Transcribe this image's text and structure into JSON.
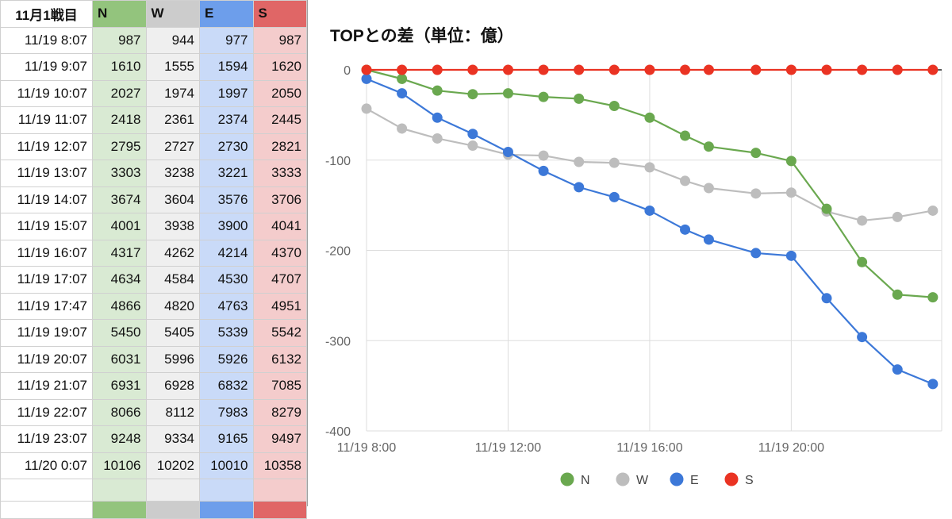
{
  "sheet": {
    "header": {
      "label": "11月1戦目",
      "cols": [
        "N",
        "W",
        "E",
        "S"
      ]
    },
    "rows": [
      {
        "time": "11/19 8:07",
        "n": "987",
        "w": "944",
        "e": "977",
        "s": "987"
      },
      {
        "time": "11/19 9:07",
        "n": "1610",
        "w": "1555",
        "e": "1594",
        "s": "1620"
      },
      {
        "time": "11/19 10:07",
        "n": "2027",
        "w": "1974",
        "e": "1997",
        "s": "2050"
      },
      {
        "time": "11/19 11:07",
        "n": "2418",
        "w": "2361",
        "e": "2374",
        "s": "2445"
      },
      {
        "time": "11/19 12:07",
        "n": "2795",
        "w": "2727",
        "e": "2730",
        "s": "2821"
      },
      {
        "time": "11/19 13:07",
        "n": "3303",
        "w": "3238",
        "e": "3221",
        "s": "3333"
      },
      {
        "time": "11/19 14:07",
        "n": "3674",
        "w": "3604",
        "e": "3576",
        "s": "3706"
      },
      {
        "time": "11/19 15:07",
        "n": "4001",
        "w": "3938",
        "e": "3900",
        "s": "4041"
      },
      {
        "time": "11/19 16:07",
        "n": "4317",
        "w": "4262",
        "e": "4214",
        "s": "4370"
      },
      {
        "time": "11/19 17:07",
        "n": "4634",
        "w": "4584",
        "e": "4530",
        "s": "4707"
      },
      {
        "time": "11/19 17:47",
        "n": "4866",
        "w": "4820",
        "e": "4763",
        "s": "4951"
      },
      {
        "time": "11/19 19:07",
        "n": "5450",
        "w": "5405",
        "e": "5339",
        "s": "5542"
      },
      {
        "time": "11/19 20:07",
        "n": "6031",
        "w": "5996",
        "e": "5926",
        "s": "6132"
      },
      {
        "time": "11/19 21:07",
        "n": "6931",
        "w": "6928",
        "e": "6832",
        "s": "7085"
      },
      {
        "time": "11/19 22:07",
        "n": "8066",
        "w": "8112",
        "e": "7983",
        "s": "8279"
      },
      {
        "time": "11/19 23:07",
        "n": "9248",
        "w": "9334",
        "e": "9165",
        "s": "9497"
      },
      {
        "time": "11/20 0:07",
        "n": "10106",
        "w": "10202",
        "e": "10010",
        "s": "10358"
      }
    ]
  },
  "chart_data": {
    "type": "line",
    "title": "TOPとの差（単位：億）",
    "xlabel": "",
    "ylabel": "",
    "ylim": [
      -400,
      0
    ],
    "yticks": [
      0,
      -100,
      -200,
      -300,
      -400
    ],
    "xlim_hours": [
      8.0,
      24.25
    ],
    "xtick_labels": [
      {
        "label": "11/19 8:00",
        "hour": 8
      },
      {
        "label": "11/19 12:00",
        "hour": 12
      },
      {
        "label": "11/19 16:00",
        "hour": 16
      },
      {
        "label": "11/19 20:00",
        "hour": 20
      }
    ],
    "x_hours": [
      8.0,
      9.0,
      10.0,
      11.0,
      12.0,
      13.0,
      14.0,
      15.0,
      16.0,
      17.0,
      17.67,
      19.0,
      20.0,
      21.0,
      22.0,
      23.0,
      24.0
    ],
    "x": [
      "11/19 8:07",
      "11/19 9:07",
      "11/19 10:07",
      "11/19 11:07",
      "11/19 12:07",
      "11/19 13:07",
      "11/19 14:07",
      "11/19 15:07",
      "11/19 16:07",
      "11/19 17:07",
      "11/19 17:47",
      "11/19 19:07",
      "11/19 20:07",
      "11/19 21:07",
      "11/19 22:07",
      "11/19 23:07",
      "11/20 0:07"
    ],
    "series": [
      {
        "name": "N",
        "color": "#6aa84f",
        "values": [
          0,
          -10,
          -23,
          -27,
          -26,
          -30,
          -32,
          -40,
          -53,
          -73,
          -85,
          -92,
          -101,
          -154,
          -213,
          -249,
          -252
        ]
      },
      {
        "name": "W",
        "color": "#bdbdbd",
        "values": [
          -43,
          -65,
          -76,
          -84,
          -94,
          -95,
          -102,
          -103,
          -108,
          -123,
          -131,
          -137,
          -136,
          -157,
          -167,
          -163,
          -156
        ]
      },
      {
        "name": "E",
        "color": "#3c78d8",
        "values": [
          -10,
          -26,
          -53,
          -71,
          -91,
          -112,
          -130,
          -141,
          -156,
          -177,
          -188,
          -203,
          -206,
          -253,
          -296,
          -332,
          -348
        ]
      },
      {
        "name": "S",
        "color": "#ea3323",
        "values": [
          0,
          0,
          0,
          0,
          0,
          0,
          0,
          0,
          0,
          0,
          0,
          0,
          0,
          0,
          0,
          0,
          0
        ]
      }
    ],
    "legend_position": "bottom"
  }
}
